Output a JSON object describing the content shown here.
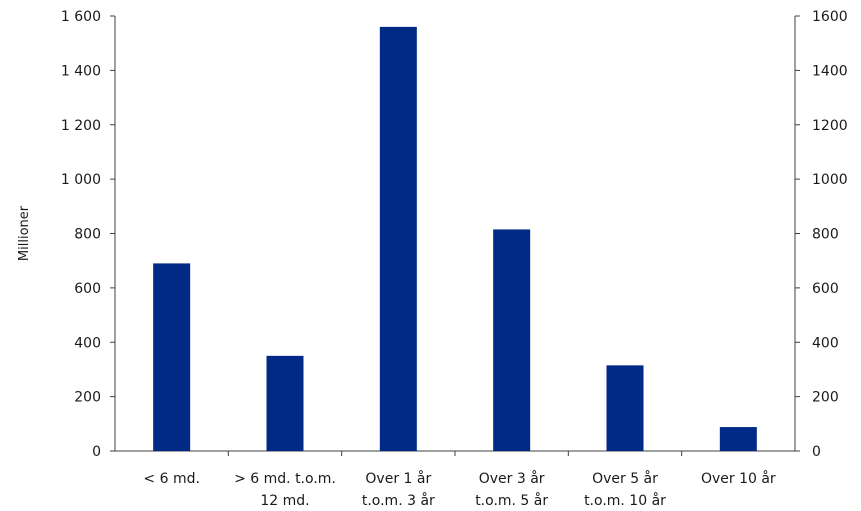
{
  "chart_data": {
    "type": "bar",
    "categories": [
      [
        "< 6 md."
      ],
      [
        "> 6 md. t.o.m.",
        "12 md."
      ],
      [
        "Over 1 år",
        "t.o.m. 3 år"
      ],
      [
        "Over 3 år",
        "t.o.m. 5 år"
      ],
      [
        "Over 5 år",
        "t.o.m. 10 år"
      ],
      [
        "Over 10 år"
      ]
    ],
    "values": [
      690,
      350,
      1560,
      815,
      315,
      88
    ],
    "ylabel": "Millioner",
    "ylim": [
      0,
      1600
    ],
    "yticks_left": [
      "0",
      "200",
      "400",
      "600",
      "800",
      "1 000",
      "1 200",
      "1 400",
      "1 600"
    ],
    "yticks_right": [
      "0",
      "200",
      "400",
      "600",
      "800",
      "1000",
      "1200",
      "1400",
      "1600"
    ],
    "grid": false,
    "bar_color": "#002a85"
  }
}
